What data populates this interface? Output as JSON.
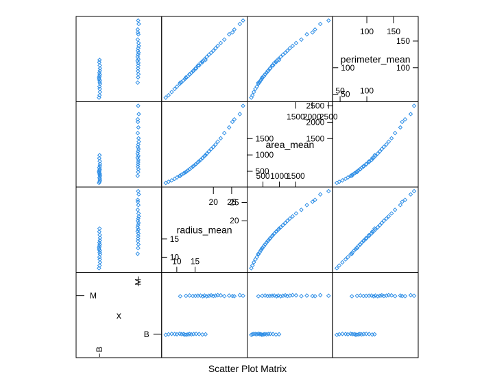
{
  "chart_data": {
    "type": "scatter",
    "title": "Scatter Plot Matrix",
    "variables": [
      "x",
      "radius_mean",
      "area_mean",
      "perimeter_mean"
    ],
    "x_categories": [
      "B",
      "M"
    ],
    "point_color": "#2e8ee6",
    "ranges": {
      "x": [
        0.5,
        2.5
      ],
      "radius_mean": [
        6.98,
        28.11
      ],
      "area_mean": [
        143.5,
        2501
      ],
      "perimeter_mean": [
        43.79,
        188.5
      ]
    },
    "tick_labels": {
      "radius_mean": {
        "upper": [
          "20",
          "25"
        ],
        "lower": [
          "10",
          "15"
        ]
      },
      "area_mean": {
        "upper": [
          "1500",
          "2000",
          "2500"
        ],
        "lower": [
          "500",
          "1000",
          "1500"
        ]
      },
      "perimeter_mean": {
        "upper": [
          "100",
          "150"
        ],
        "lower": [
          "50",
          "100"
        ]
      }
    },
    "group_summary": {
      "B": {
        "radius_mean": [
          6.98,
          17.85
        ],
        "area_mean": [
          143.5,
          992.1
        ],
        "perimeter_mean": [
          43.79,
          114.6
        ]
      },
      "M": {
        "radius_mean": [
          10.95,
          28.11
        ],
        "area_mean": [
          361.6,
          2501
        ],
        "perimeter_mean": [
          71.9,
          188.5
        ]
      }
    },
    "samples": [
      {
        "x": "B",
        "radius_mean": 6.98,
        "area_mean": 143.5,
        "perimeter_mean": 43.79
      },
      {
        "x": "B",
        "radius_mean": 7.73,
        "area_mean": 178.8,
        "perimeter_mean": 48.34
      },
      {
        "x": "B",
        "radius_mean": 8.6,
        "area_mean": 221.8,
        "perimeter_mean": 54.3
      },
      {
        "x": "B",
        "radius_mean": 9.4,
        "area_mean": 268.8,
        "perimeter_mean": 60.1
      },
      {
        "x": "B",
        "radius_mean": 10.05,
        "area_mean": 311.9,
        "perimeter_mean": 64.55
      },
      {
        "x": "B",
        "radius_mean": 10.8,
        "area_mean": 359.9,
        "perimeter_mean": 69.7
      },
      {
        "x": "B",
        "radius_mean": 11.3,
        "area_mean": 396.5,
        "perimeter_mean": 72.8
      },
      {
        "x": "B",
        "radius_mean": 11.85,
        "area_mean": 432.7,
        "perimeter_mean": 76.3
      },
      {
        "x": "B",
        "radius_mean": 12.2,
        "area_mean": 457.9,
        "perimeter_mean": 78.8
      },
      {
        "x": "B",
        "radius_mean": 12.6,
        "area_mean": 489.0,
        "perimeter_mean": 81.2
      },
      {
        "x": "B",
        "radius_mean": 13.05,
        "area_mean": 527.2,
        "perimeter_mean": 84.1
      },
      {
        "x": "B",
        "radius_mean": 13.5,
        "area_mean": 561.3,
        "perimeter_mean": 87.0
      },
      {
        "x": "B",
        "radius_mean": 14.0,
        "area_mean": 609.9,
        "perimeter_mean": 90.4
      },
      {
        "x": "B",
        "radius_mean": 14.6,
        "area_mean": 664.7,
        "perimeter_mean": 94.3
      },
      {
        "x": "B",
        "radius_mean": 15.3,
        "area_mean": 725.5,
        "perimeter_mean": 98.9
      },
      {
        "x": "B",
        "radius_mean": 16.1,
        "area_mean": 806.8,
        "perimeter_mean": 104.3
      },
      {
        "x": "B",
        "radius_mean": 17.0,
        "area_mean": 899.3,
        "perimeter_mean": 110.1
      },
      {
        "x": "B",
        "radius_mean": 17.85,
        "area_mean": 992.1,
        "perimeter_mean": 114.6
      },
      {
        "x": "M",
        "radius_mean": 10.95,
        "area_mean": 361.6,
        "perimeter_mean": 71.9
      },
      {
        "x": "M",
        "radius_mean": 12.5,
        "area_mean": 477.1,
        "perimeter_mean": 81.9
      },
      {
        "x": "M",
        "radius_mean": 13.5,
        "area_mean": 565.4,
        "perimeter_mean": 87.9
      },
      {
        "x": "M",
        "radius_mean": 14.4,
        "area_mean": 641.2,
        "perimeter_mean": 93.6
      },
      {
        "x": "M",
        "radius_mean": 15.1,
        "area_mean": 711.8,
        "perimeter_mean": 98.8
      },
      {
        "x": "M",
        "radius_mean": 15.8,
        "area_mean": 781.0,
        "perimeter_mean": 104.1
      },
      {
        "x": "M",
        "radius_mean": 16.5,
        "area_mean": 846.4,
        "perimeter_mean": 108.9
      },
      {
        "x": "M",
        "radius_mean": 17.1,
        "area_mean": 912.7,
        "perimeter_mean": 112.8
      },
      {
        "x": "M",
        "radius_mean": 17.6,
        "area_mean": 970.0,
        "perimeter_mean": 116.1
      },
      {
        "x": "M",
        "radius_mean": 18.2,
        "area_mean": 1041.0,
        "perimeter_mean": 120.3
      },
      {
        "x": "M",
        "radius_mean": 18.8,
        "area_mean": 1110.0,
        "perimeter_mean": 124.4
      },
      {
        "x": "M",
        "radius_mean": 19.4,
        "area_mean": 1180.0,
        "perimeter_mean": 128.0
      },
      {
        "x": "M",
        "radius_mean": 20.0,
        "area_mean": 1245.0,
        "perimeter_mean": 131.9
      },
      {
        "x": "M",
        "radius_mean": 20.6,
        "area_mean": 1320.0,
        "perimeter_mean": 136.5
      },
      {
        "x": "M",
        "radius_mean": 21.2,
        "area_mean": 1404.0,
        "perimeter_mean": 140.9
      },
      {
        "x": "M",
        "radius_mean": 22.0,
        "area_mean": 1510.0,
        "perimeter_mean": 146.3
      },
      {
        "x": "M",
        "radius_mean": 23.0,
        "area_mean": 1670.0,
        "perimeter_mean": 152.8
      },
      {
        "x": "M",
        "radius_mean": 24.3,
        "area_mean": 1840.0,
        "perimeter_mean": 162.7
      },
      {
        "x": "M",
        "radius_mean": 25.2,
        "area_mean": 2010.0,
        "perimeter_mean": 166.2
      },
      {
        "x": "M",
        "radius_mean": 25.73,
        "area_mean": 2089.0,
        "perimeter_mean": 171.7
      },
      {
        "x": "M",
        "radius_mean": 27.22,
        "area_mean": 2250.0,
        "perimeter_mean": 182.1
      },
      {
        "x": "M",
        "radius_mean": 28.11,
        "area_mean": 2501.0,
        "perimeter_mean": 188.5
      }
    ]
  }
}
